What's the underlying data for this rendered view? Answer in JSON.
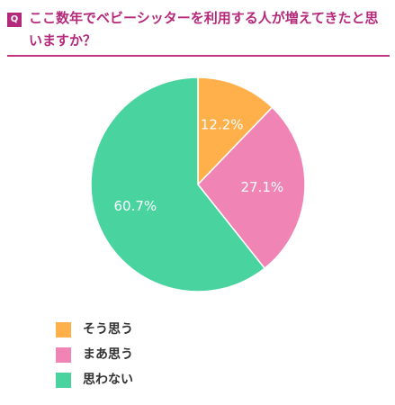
{
  "question": {
    "badge": "Q",
    "text": "ここ数年でベビーシッターを利用する人が増えてきたと思いますか？"
  },
  "chart_data": {
    "type": "pie",
    "categories": [
      "そう思う",
      "まあ思う",
      "思わない"
    ],
    "values": [
      12.2,
      27.1,
      60.7
    ],
    "labels": [
      "12.2%",
      "27.1%",
      "60.7%"
    ],
    "colors": [
      "#ffb04a",
      "#ef84b5",
      "#48d39f"
    ],
    "legend_position": "bottom-left"
  }
}
